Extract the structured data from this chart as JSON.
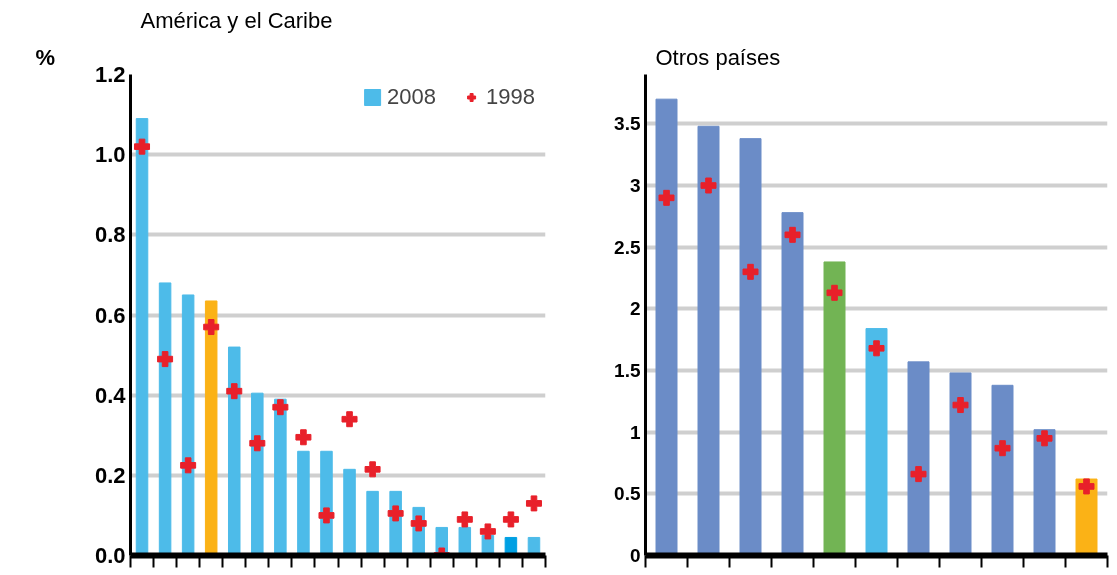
{
  "chart_data": [
    {
      "type": "bar",
      "title": "América y el Caribe",
      "ylabel": "%",
      "categories": [
        null,
        null,
        null,
        null,
        null,
        null,
        null,
        null,
        null,
        null,
        null,
        null,
        null,
        null,
        null,
        null,
        null,
        null
      ],
      "series": [
        {
          "name": "2008",
          "color": "#4dbbe9",
          "colors": [
            "#4dbbe9",
            "#4dbbe9",
            "#4dbbe9",
            "#fbb216",
            "#4dbbe9",
            "#4dbbe9",
            "#4dbbe9",
            "#4dbbe9",
            "#4dbbe9",
            "#4dbbe9",
            "#4dbbe9",
            "#4dbbe9",
            "#4dbbe9",
            "#4dbbe9",
            "#4dbbe9",
            "#4dbbe9",
            "#00a0e3",
            "#4dbbe9"
          ],
          "values": [
            1.09,
            0.68,
            0.65,
            0.635,
            0.52,
            0.405,
            0.39,
            0.26,
            0.26,
            0.215,
            0.16,
            0.16,
            0.12,
            0.07,
            0.07,
            0.05,
            0.045,
            0.045
          ]
        },
        {
          "name": "1998",
          "type": "scatter",
          "marker": "cross",
          "color": "#e8202a",
          "values": [
            1.02,
            0.49,
            0.225,
            0.57,
            0.41,
            0.28,
            0.37,
            0.295,
            0.1,
            0.34,
            0.215,
            0.105,
            0.08,
            0.0,
            0.09,
            0.06,
            0.09,
            0.13
          ]
        }
      ],
      "ylim": [
        0,
        1.2
      ],
      "yticks": [
        {
          "value": 0,
          "label": "0.0"
        },
        0.2,
        0.4,
        0.6,
        0.8,
        {
          "value": 1,
          "label": "1.0"
        },
        1.2
      ],
      "grid": "y",
      "legend": "top right",
      "tick_labels": "y"
    },
    {
      "type": "bar",
      "title": "Otros países",
      "categories": [
        null,
        null,
        null,
        null,
        null,
        null,
        null,
        null,
        null,
        null,
        null
      ],
      "series": [
        {
          "color": "#6b8cc7",
          "colors": [
            "#6b8cc7",
            "#6b8cc7",
            "#6b8cc7",
            "#6b8cc7",
            "#72b454",
            "#4dbbe9",
            "#6b8cc7",
            "#6b8cc7",
            "#6b8cc7",
            "#6b8cc7",
            "#fbb216"
          ],
          "values": [
            3.7,
            3.48,
            3.38,
            2.78,
            2.38,
            1.84,
            1.57,
            1.48,
            1.38,
            1.02,
            0.62
          ]
        },
        {
          "type": "scatter",
          "marker": "cross",
          "color": "#e8202a",
          "values": [
            2.9,
            3.0,
            2.3,
            2.6,
            2.13,
            1.68,
            0.66,
            1.22,
            0.87,
            0.95,
            0.56
          ]
        }
      ],
      "ylim": [
        0,
        3.9
      ],
      "yticks": [
        0,
        0.5,
        1,
        1.5,
        2,
        2.5,
        3,
        3.5
      ],
      "grid": "y",
      "tick_labels": "y"
    }
  ]
}
